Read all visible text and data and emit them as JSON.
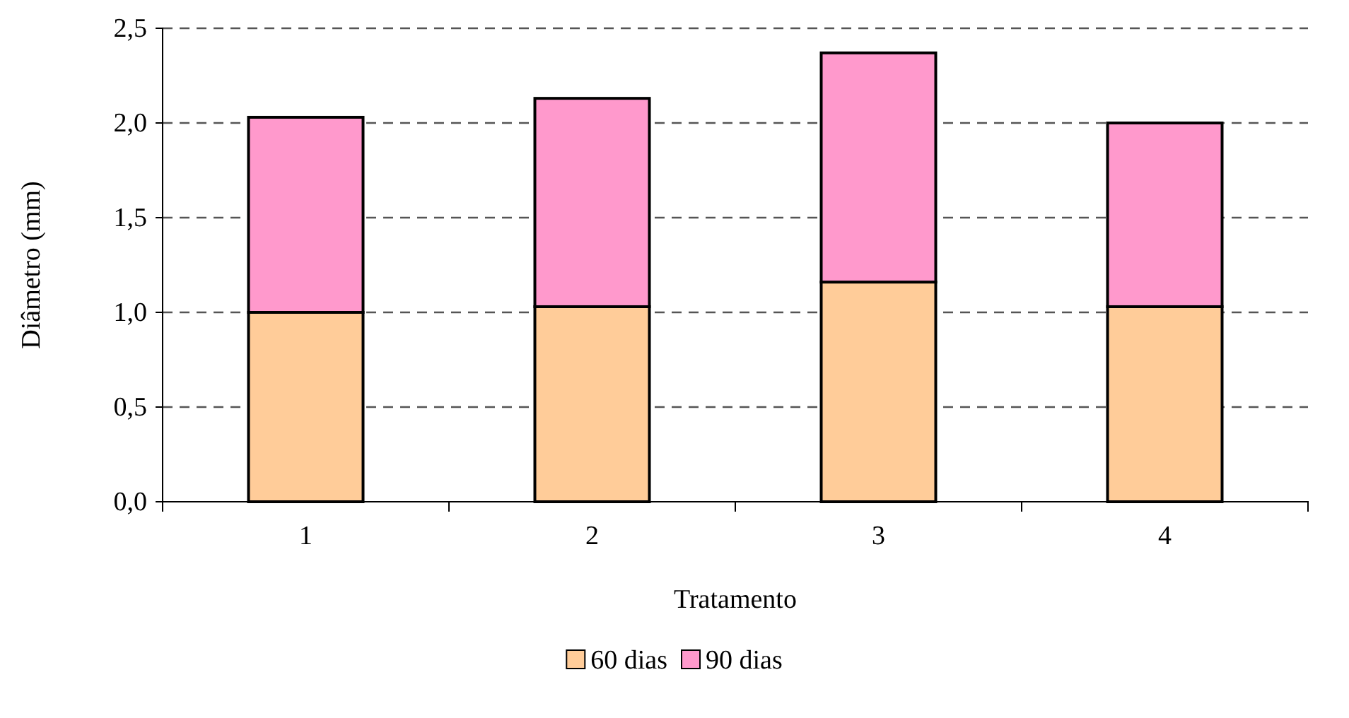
{
  "chart_data": {
    "type": "bar",
    "stacked": true,
    "xlabel": "Tratamento",
    "ylabel": "Diâmetro (mm)",
    "categories": [
      "1",
      "2",
      "3",
      "4"
    ],
    "series": [
      {
        "name": "60 dias",
        "color": "#ffcc99",
        "values": [
          1.0,
          1.03,
          1.16,
          1.03
        ]
      },
      {
        "name": "90 dias",
        "color": "#ff99cc",
        "values": [
          1.03,
          1.1,
          1.21,
          0.97
        ]
      }
    ],
    "ylim": [
      0,
      2.5
    ],
    "yticks": [
      {
        "value": 0,
        "label": "0,0"
      },
      {
        "value": 0.5,
        "label": "0,5"
      },
      {
        "value": 1,
        "label": "1,0"
      },
      {
        "value": 1.5,
        "label": "1,5"
      },
      {
        "value": 2,
        "label": "2,0"
      },
      {
        "value": 2.5,
        "label": "2,5"
      }
    ],
    "grid": "y",
    "legend": "bottom"
  }
}
